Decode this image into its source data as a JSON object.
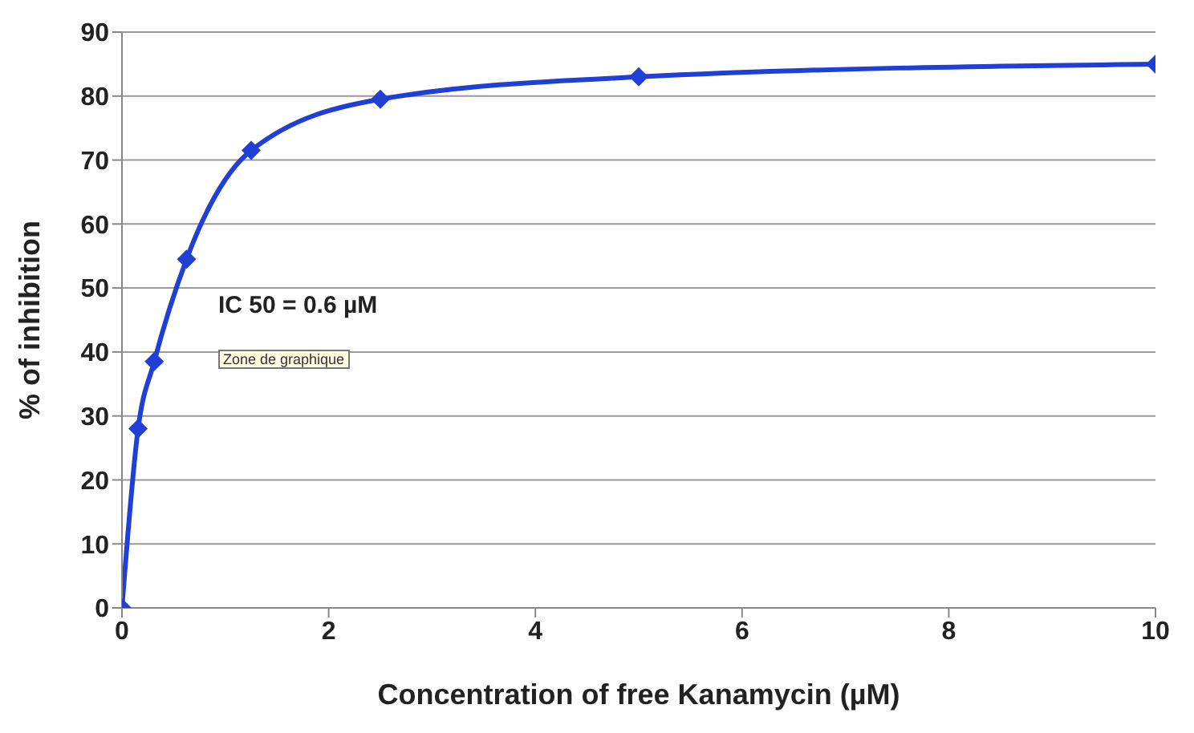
{
  "chart_data": {
    "type": "line",
    "xlabel": "Concentration of free Kanamycin (µM)",
    "ylabel": "% of inhibition",
    "x": [
      0,
      0.156,
      0.3125,
      0.625,
      1.25,
      2.5,
      5,
      10
    ],
    "series": [
      {
        "color": "#1f3fd6",
        "values": [
          0,
          28,
          38.5,
          54.5,
          71.5,
          79.5,
          83,
          85
        ]
      }
    ],
    "xlim": [
      0,
      10
    ],
    "xticks": [
      0,
      2,
      4,
      6,
      8,
      10
    ],
    "ylim": [
      0,
      90
    ],
    "yticks": [
      0,
      10,
      20,
      30,
      40,
      50,
      60,
      70,
      80,
      90
    ],
    "grid": "y",
    "marker": "diamond",
    "line_style": "solid",
    "annotations": [
      "IC 50 = 0.6 µM",
      "Zone de graphique"
    ]
  }
}
